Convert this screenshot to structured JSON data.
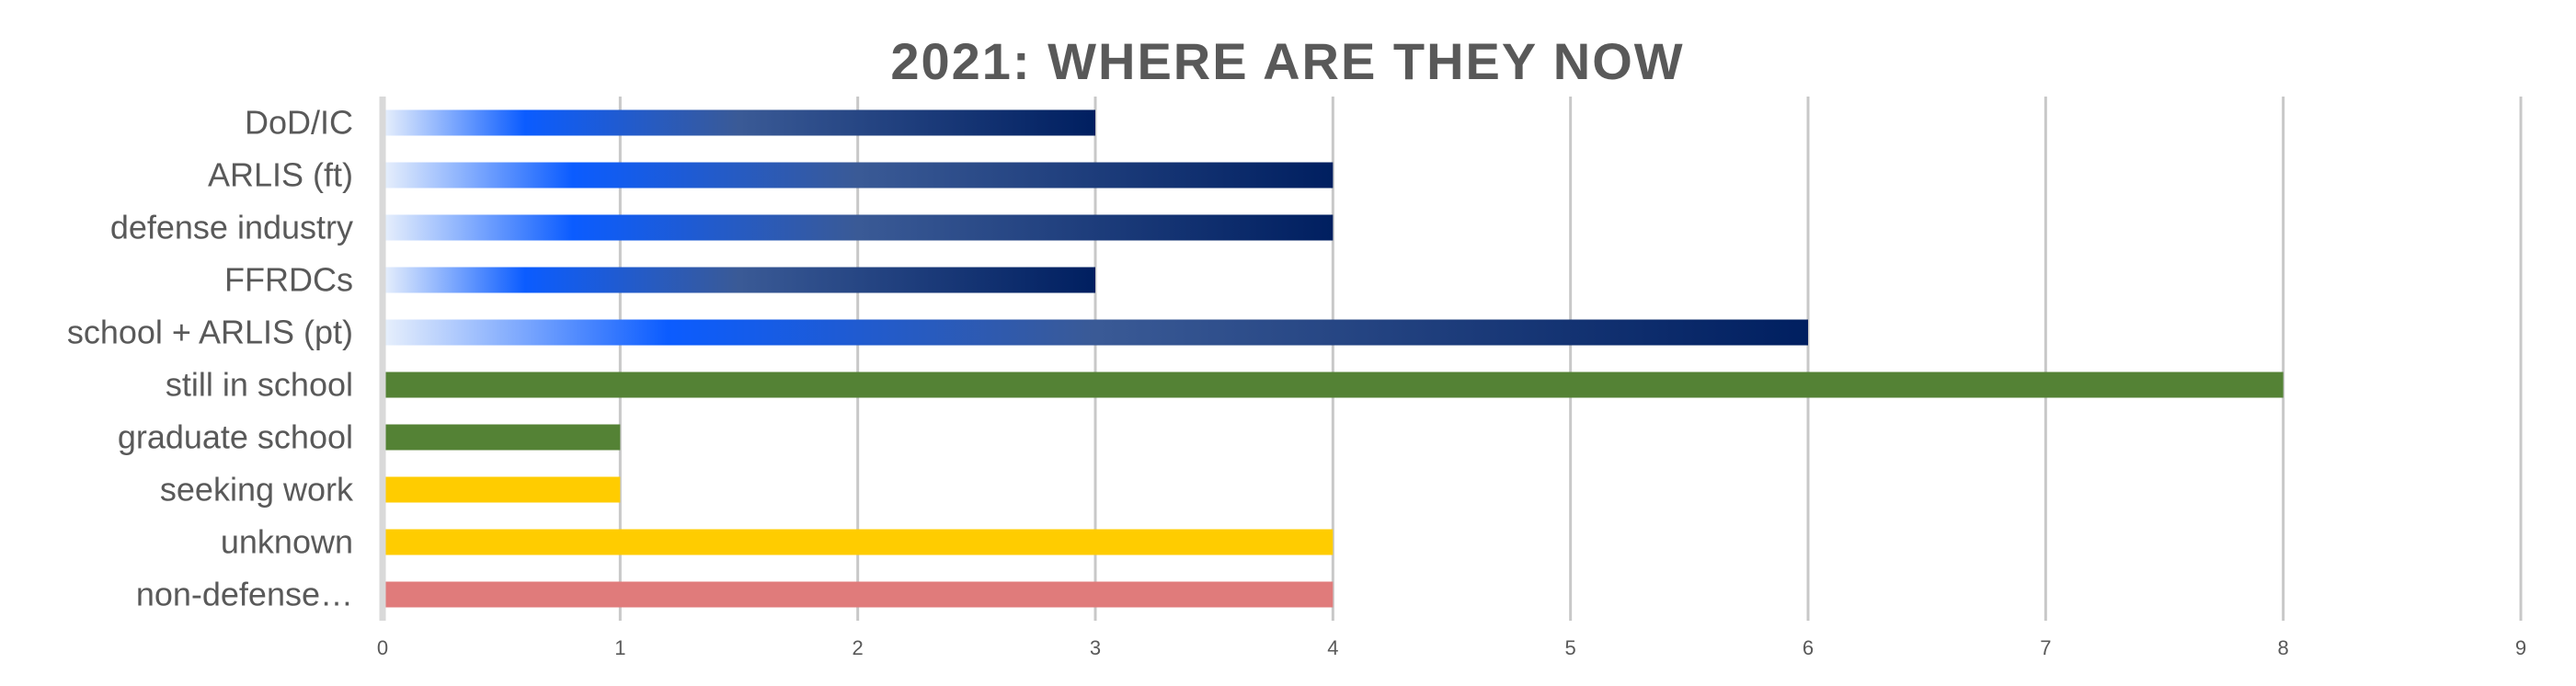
{
  "chart_data": {
    "type": "bar",
    "orientation": "horizontal",
    "title": "2021: WHERE ARE THEY NOW",
    "xlabel": "",
    "ylabel": "",
    "xlim": [
      0,
      9
    ],
    "x_ticks": [
      "0",
      "1",
      "2",
      "3",
      "4",
      "5",
      "6",
      "7",
      "8",
      "9"
    ],
    "grid": "vertical",
    "legend": "none",
    "categories": [
      "DoD/IC",
      "ARLIS (ft)",
      "defense industry",
      "FFRDCs",
      "school + ARLIS (pt)",
      "still in school",
      "graduate school",
      "seeking work",
      "unknown",
      "non-defense…"
    ],
    "values": [
      3,
      4,
      4,
      3,
      6,
      8,
      1,
      1,
      4,
      4
    ],
    "bar_styles": [
      "blue-gradient",
      "blue-gradient",
      "blue-gradient",
      "blue-gradient",
      "blue-gradient",
      "green",
      "green",
      "yellow",
      "yellow",
      "red"
    ],
    "colors": {
      "green": "#548235",
      "yellow": "#ffcc00",
      "red": "#e07b7b",
      "blue_light": "#e8f0fc",
      "blue_bright": "#0b5cff",
      "blue_mid": "#3a5a96",
      "blue_dark": "#001f60",
      "text": "#595959",
      "grid": "#c8c8c8"
    }
  }
}
